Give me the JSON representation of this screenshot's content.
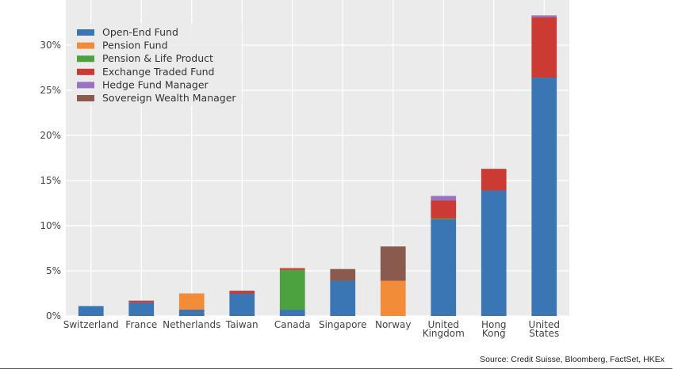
{
  "chart_data": {
    "type": "bar",
    "stacked": true,
    "categories": [
      [
        "Switzerland"
      ],
      [
        "France"
      ],
      [
        "Netherlands"
      ],
      [
        "Taiwan"
      ],
      [
        "Canada"
      ],
      [
        "Singapore"
      ],
      [
        "Norway"
      ],
      [
        "United",
        "Kingdom"
      ],
      [
        "Hong",
        "Kong"
      ],
      [
        "United",
        "States"
      ]
    ],
    "series": [
      {
        "name": "Open-End Fund",
        "color": "#3a76b3",
        "values": [
          1.1,
          1.5,
          0.7,
          2.5,
          0.7,
          3.9,
          0,
          10.7,
          13.9,
          26.4
        ]
      },
      {
        "name": "Pension Fund",
        "color": "#f28c38",
        "values": [
          0,
          0,
          1.8,
          0,
          0,
          0,
          3.9,
          0,
          0,
          0
        ]
      },
      {
        "name": "Pension & Life Product",
        "color": "#4ba23f",
        "values": [
          0,
          0,
          0,
          0,
          4.4,
          0,
          0,
          0.1,
          0,
          0
        ]
      },
      {
        "name": "Exchange Traded Fund",
        "color": "#cc3a34",
        "values": [
          0,
          0.2,
          0,
          0.3,
          0.2,
          0,
          0,
          2.0,
          2.4,
          6.7
        ]
      },
      {
        "name": "Hedge Fund Manager",
        "color": "#9a72c2",
        "values": [
          0,
          0,
          0,
          0,
          0,
          0,
          0,
          0.5,
          0,
          0.2
        ]
      },
      {
        "name": "Sovereign Wealth Manager",
        "color": "#8b5a4f",
        "values": [
          0,
          0,
          0,
          0,
          0,
          1.3,
          3.8,
          0,
          0,
          0
        ]
      }
    ],
    "ylim": [
      0,
      35
    ],
    "yticks": [
      0,
      5,
      10,
      15,
      20,
      25,
      30
    ],
    "ytick_labels": [
      "0%",
      "5%",
      "10%",
      "15%",
      "20%",
      "25%",
      "30%"
    ],
    "legend_position": "upper-left",
    "grid": true
  },
  "source": "Source: Credit Suisse, Bloomberg, FactSet, HKEx"
}
